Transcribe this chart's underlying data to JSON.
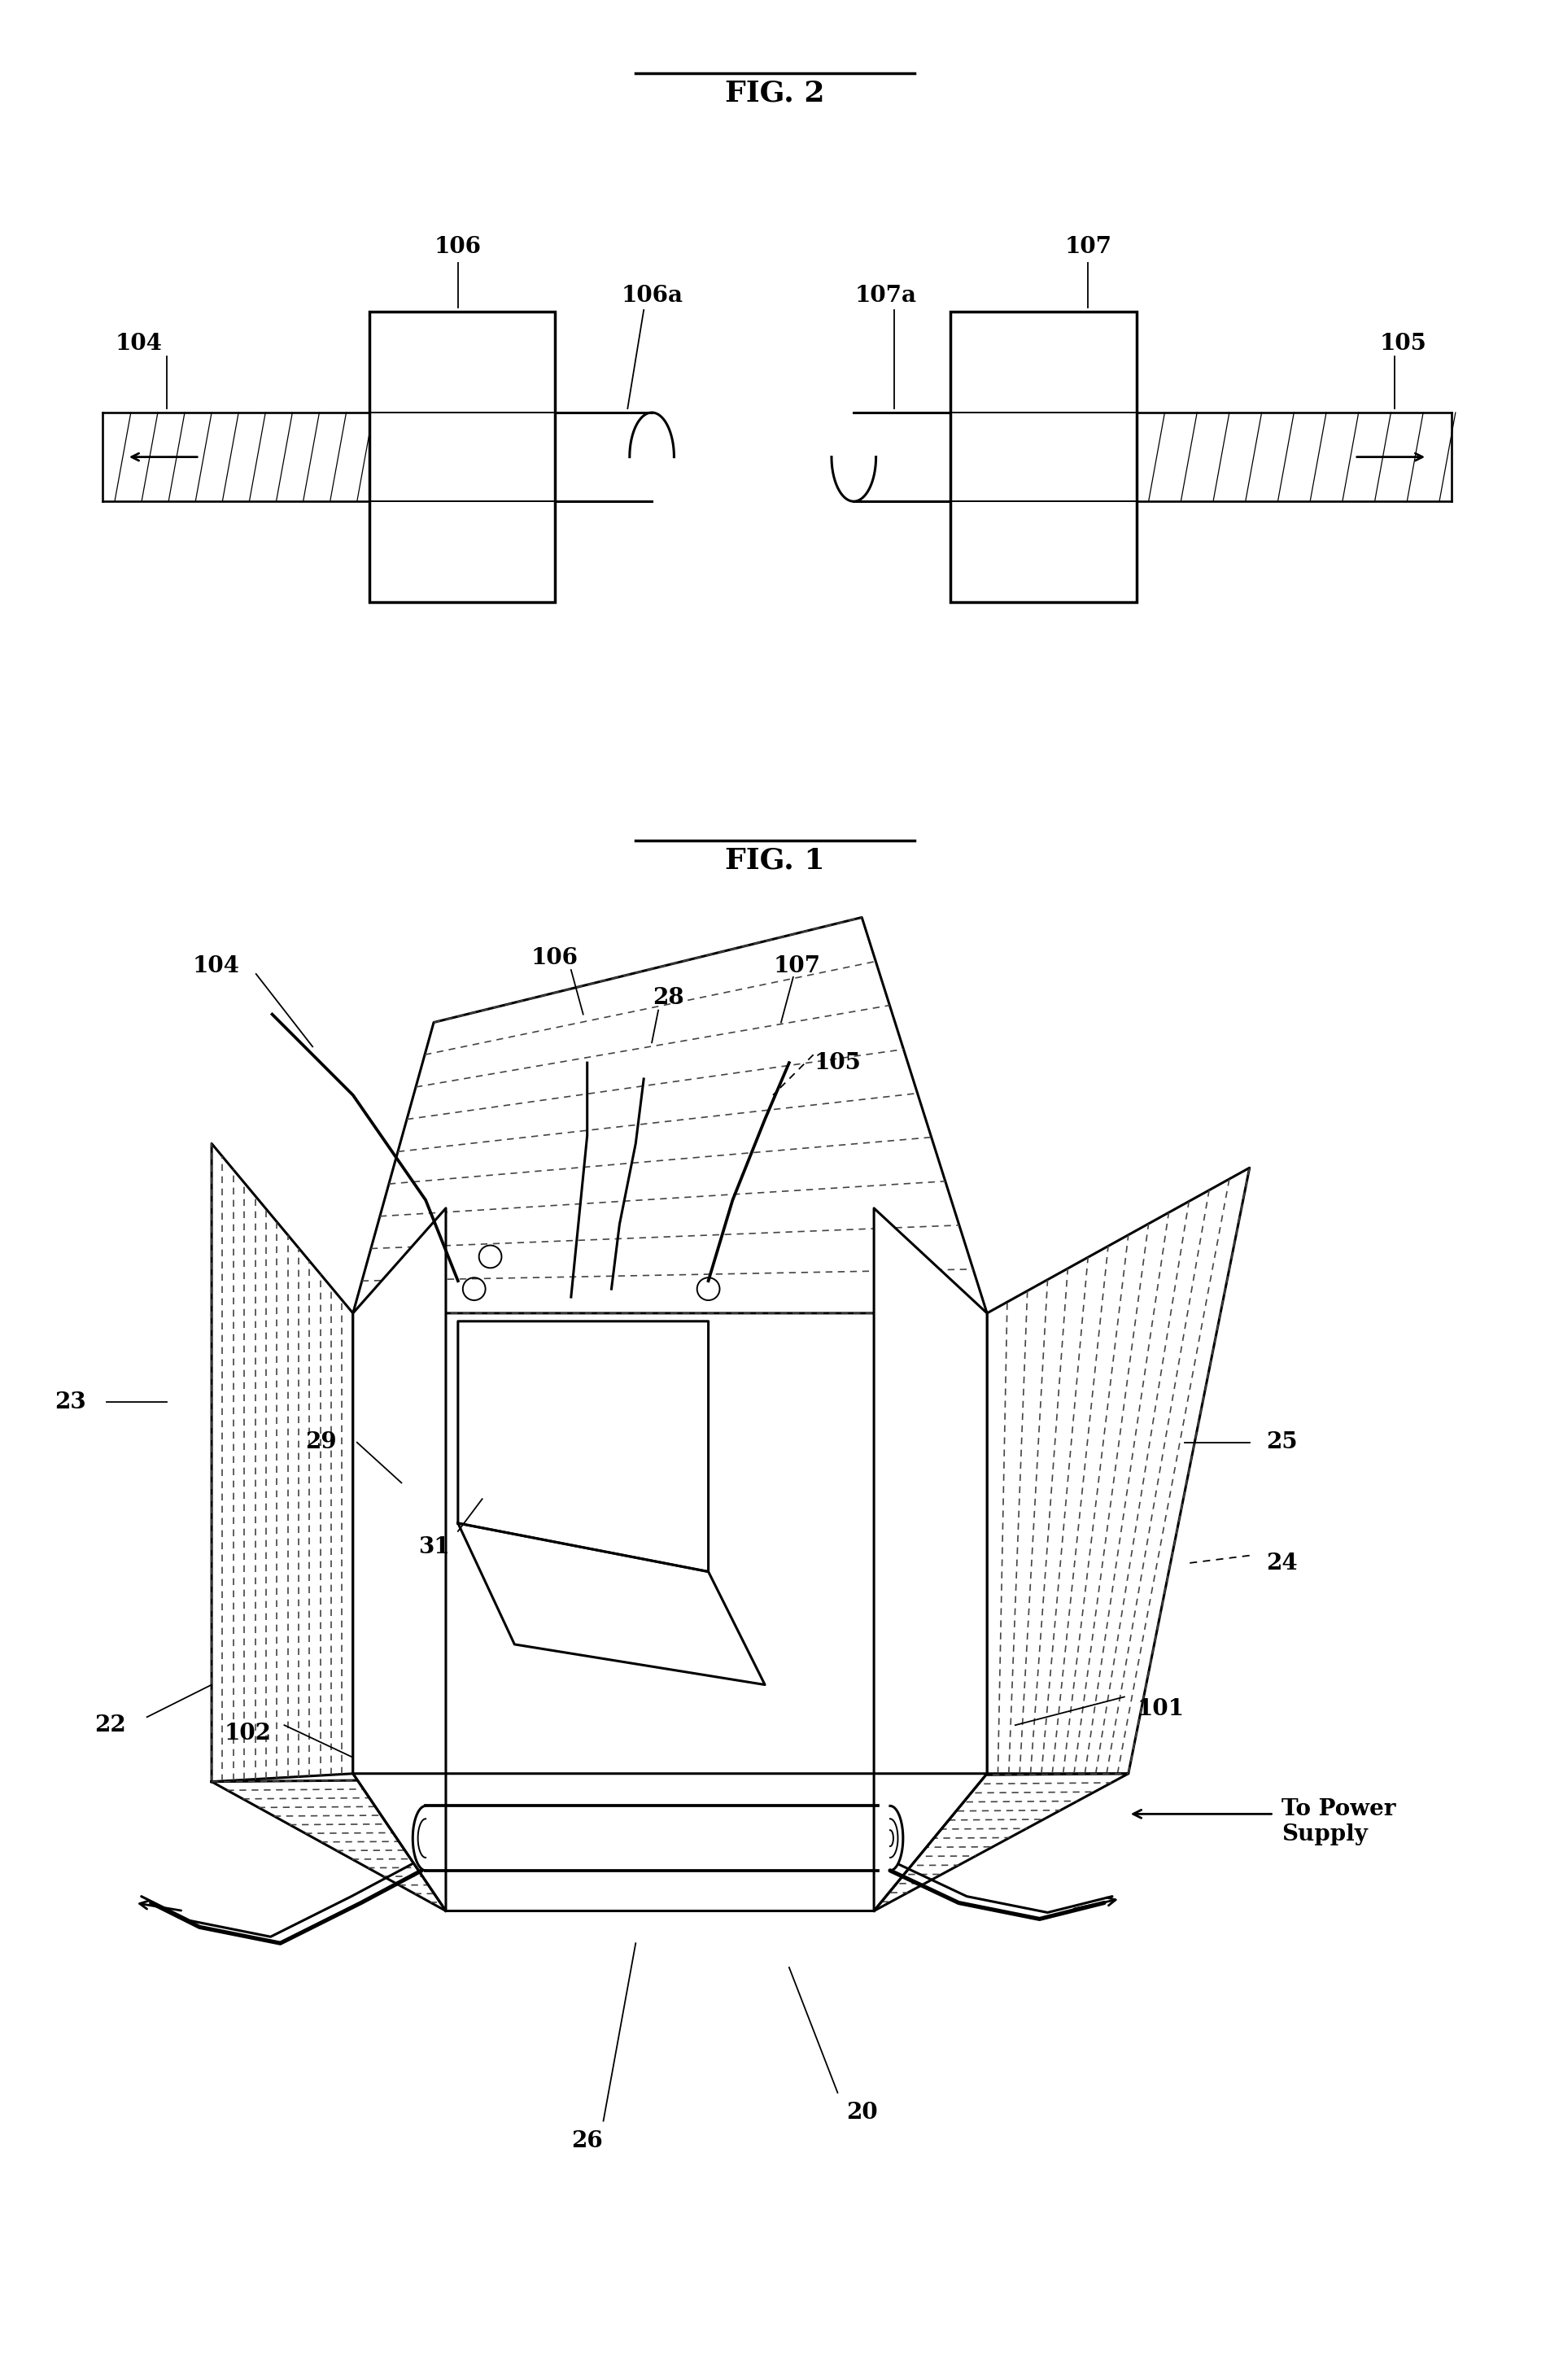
{
  "bg_color": "#ffffff",
  "fig1_title": "FIG. 1",
  "fig2_title": "FIG. 2",
  "fig1_yrange": [
    0.42,
    0.97
  ],
  "fig2_yrange": [
    0.05,
    0.35
  ],
  "lw_main": 2.2,
  "lw_thin": 1.4,
  "lw_label": 1.3,
  "label_fs": 20,
  "title_fs": 24
}
